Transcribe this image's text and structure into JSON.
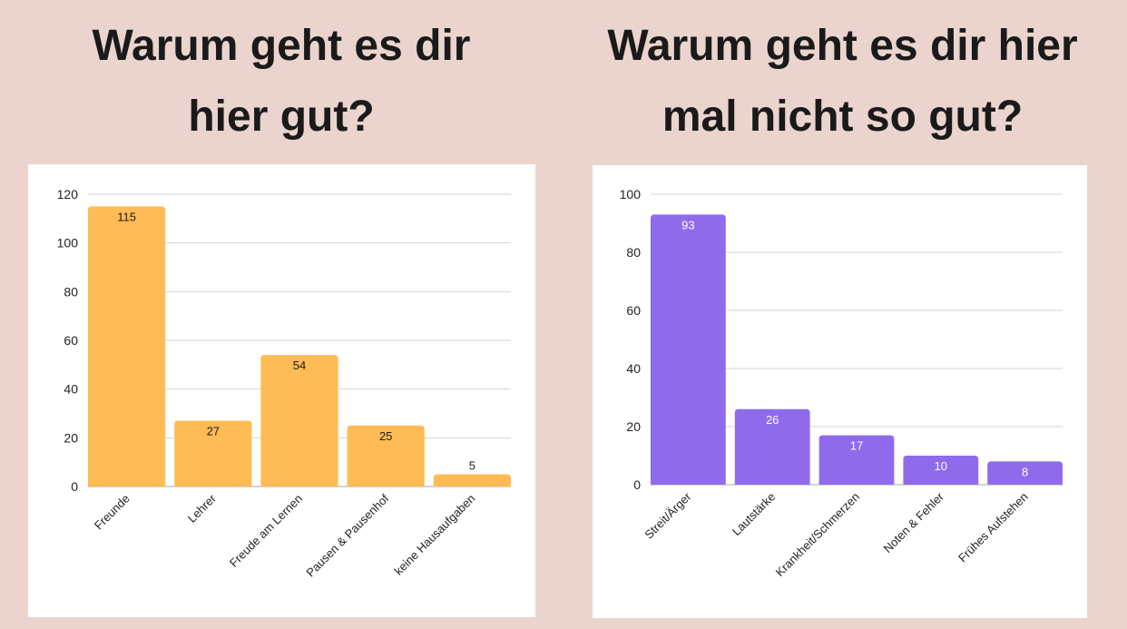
{
  "chart_data": [
    {
      "type": "bar",
      "title": "Warum geht es dir hier gut?",
      "categories": [
        "Freunde",
        "Lehrer",
        "Freude am Lernen",
        "Pausen & Pausenhof",
        "keine Hausaufgaben"
      ],
      "values": [
        115,
        27,
        54,
        25,
        5
      ],
      "value_labels": [
        "115",
        "27",
        "54",
        "25",
        "5"
      ],
      "yticks": [
        "0",
        "20",
        "40",
        "60",
        "80",
        "100",
        "120"
      ],
      "ylim": [
        0,
        120
      ],
      "xlabel": "",
      "ylabel": "",
      "grid": true,
      "color": "#ffbb55",
      "label_color": "#1a1a1a"
    },
    {
      "type": "bar",
      "title": "Warum geht es dir hier mal nicht so gut?",
      "categories": [
        "Streit/Ärger",
        "Lautstärke",
        "Krankheit/Schmerzen",
        "Noten & Fehler",
        "Frühes Aufstehen"
      ],
      "values": [
        93,
        26,
        17,
        10,
        8
      ],
      "value_labels": [
        "93",
        "26",
        "17",
        "10",
        "8"
      ],
      "yticks": [
        "0",
        "20",
        "40",
        "60",
        "80",
        "100"
      ],
      "ylim": [
        0,
        100
      ],
      "xlabel": "",
      "ylabel": "",
      "grid": true,
      "color": "#8f6bec",
      "label_color": "#ffffff"
    }
  ],
  "titles": {
    "left": [
      "Warum geht es dir",
      "hier gut?"
    ],
    "right": [
      "Warum geht es dir hier",
      "mal nicht so gut?"
    ]
  }
}
